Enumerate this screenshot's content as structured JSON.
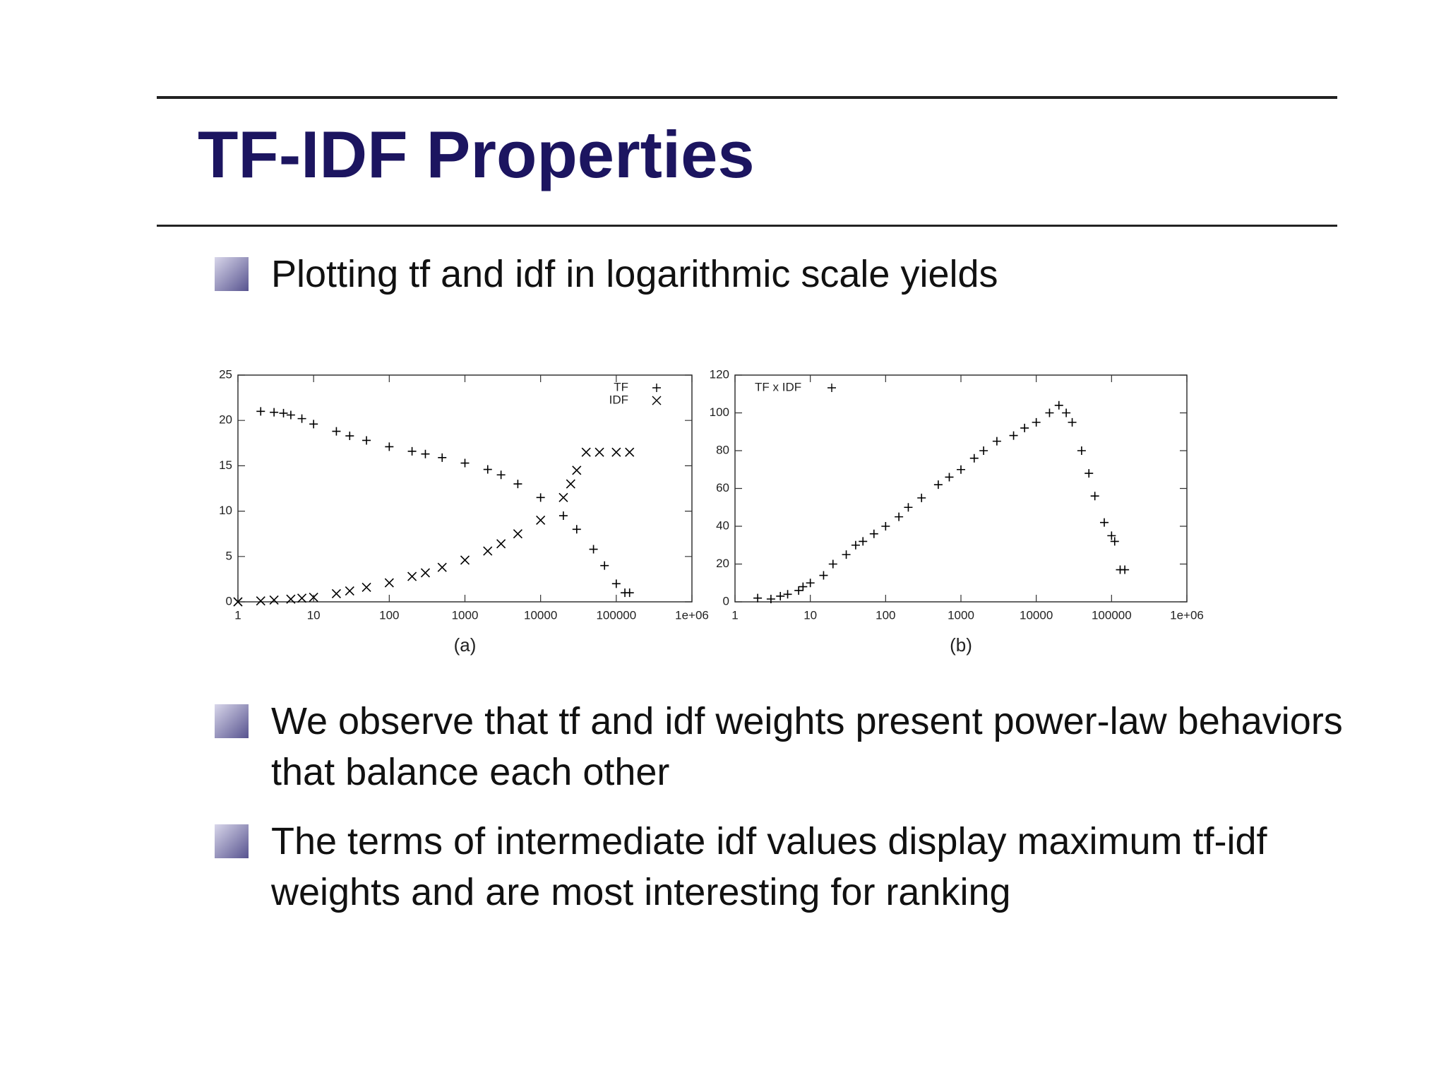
{
  "slide": {
    "title": "TF-IDF Properties",
    "bullets": [
      "Plotting tf and idf in logarithmic scale yields",
      "We observe that tf and idf weights present power-law behaviors that balance each other",
      "The terms of intermediate idf values display maximum tf-idf weights and are most interesting for ranking"
    ]
  },
  "chart_data": [
    {
      "type": "scatter",
      "caption": "(a)",
      "log_x": true,
      "legend": "top right",
      "xlim": [
        1,
        1000000
      ],
      "xticks": [
        1,
        10,
        100,
        1000,
        10000,
        100000,
        {
          "value": 1000000,
          "label": "1e+06"
        }
      ],
      "ylim": [
        0,
        25
      ],
      "yticks": [
        0,
        5,
        10,
        15,
        20,
        25
      ],
      "series": [
        {
          "name": "TF",
          "color": "#000000",
          "marker": "+",
          "x": [
            2,
            3,
            4,
            5,
            7,
            10,
            20,
            30,
            50,
            100,
            200,
            300,
            500,
            1000,
            2000,
            3000,
            5000,
            10000,
            20000,
            30000,
            50000,
            70000,
            100000,
            130000,
            150000
          ],
          "values": [
            21,
            20.9,
            20.8,
            20.6,
            20.2,
            19.6,
            18.8,
            18.3,
            17.8,
            17.1,
            16.6,
            16.3,
            15.9,
            15.3,
            14.6,
            14,
            13,
            11.5,
            9.5,
            8,
            5.8,
            4,
            2,
            1,
            1
          ]
        },
        {
          "name": "IDF",
          "color": "#000000",
          "marker": "x",
          "x": [
            1,
            2,
            3,
            5,
            7,
            10,
            20,
            30,
            50,
            100,
            200,
            300,
            500,
            1000,
            2000,
            3000,
            5000,
            10000,
            20000,
            25000,
            30000,
            40000,
            60000,
            100000,
            150000
          ],
          "values": [
            0,
            0.1,
            0.2,
            0.3,
            0.4,
            0.5,
            0.9,
            1.2,
            1.6,
            2.1,
            2.8,
            3.2,
            3.8,
            4.6,
            5.6,
            6.4,
            7.5,
            9,
            11.5,
            13,
            14.5,
            16.5,
            16.5,
            16.5,
            16.5
          ]
        }
      ]
    },
    {
      "type": "scatter",
      "caption": "(b)",
      "log_x": true,
      "legend": "top left",
      "xlim": [
        1,
        1000000
      ],
      "xticks": [
        1,
        10,
        100,
        1000,
        10000,
        100000,
        {
          "value": 1000000,
          "label": "1e+06"
        }
      ],
      "ylim": [
        0,
        120
      ],
      "yticks": [
        0,
        20,
        40,
        60,
        80,
        100,
        120
      ],
      "series": [
        {
          "name": "TF x IDF",
          "color": "#000000",
          "marker": "+",
          "x": [
            2,
            3,
            4,
            5,
            7,
            8,
            10,
            15,
            20,
            30,
            40,
            50,
            70,
            100,
            150,
            200,
            300,
            500,
            700,
            1000,
            1500,
            2000,
            3000,
            5000,
            7000,
            10000,
            15000,
            20000,
            25000,
            30000,
            40000,
            50000,
            60000,
            80000,
            100000,
            110000,
            130000,
            150000
          ],
          "values": [
            2,
            1.5,
            3,
            4,
            6,
            8,
            10,
            14,
            20,
            25,
            30,
            32,
            36,
            40,
            45,
            50,
            55,
            62,
            66,
            70,
            76,
            80,
            85,
            88,
            92,
            95,
            100,
            104,
            100,
            95,
            80,
            68,
            56,
            42,
            35,
            32,
            17,
            17
          ]
        }
      ]
    }
  ]
}
